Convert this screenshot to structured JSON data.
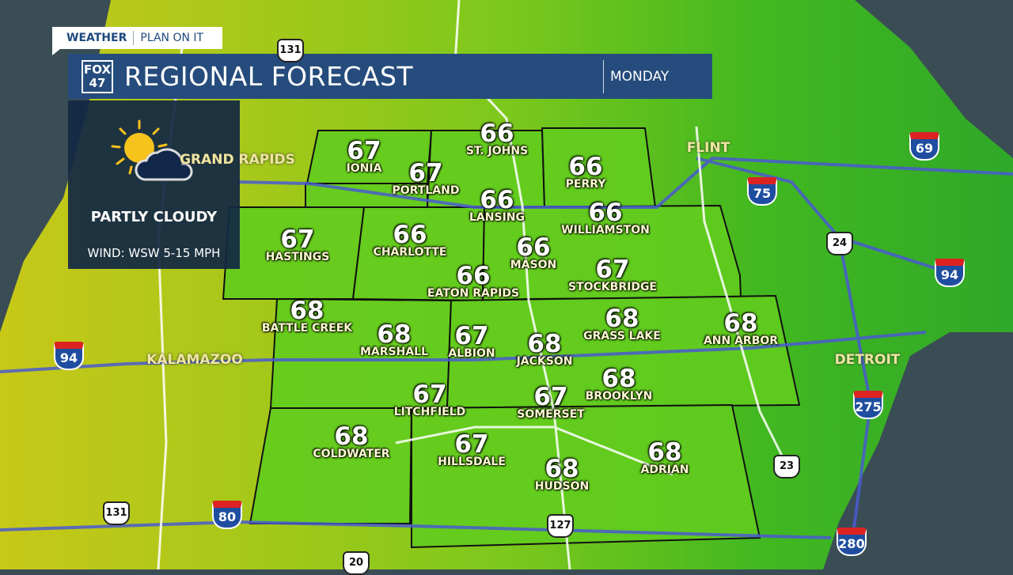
{
  "brand": {
    "weather": "WEATHER",
    "tagline": "PLAN ON IT"
  },
  "header": {
    "logo": "FOX 47",
    "title": "REGIONAL FORECAST",
    "day": "MONDAY"
  },
  "panel": {
    "icon": "partly-cloudy-icon",
    "condition": "PARTLY CLOUDY",
    "wind": "WIND: WSW 5-15 MPH"
  },
  "cities": [
    {
      "name": "IONIA",
      "temp": "67"
    },
    {
      "name": "ST. JOHNS",
      "temp": "66"
    },
    {
      "name": "PORTLAND",
      "temp": "67"
    },
    {
      "name": "PERRY",
      "temp": "66"
    },
    {
      "name": "LANSING",
      "temp": "66"
    },
    {
      "name": "WILLIAMSTON",
      "temp": "66"
    },
    {
      "name": "HASTINGS",
      "temp": "67"
    },
    {
      "name": "CHARLOTTE",
      "temp": "66"
    },
    {
      "name": "MASON",
      "temp": "66"
    },
    {
      "name": "STOCKBRIDGE",
      "temp": "67"
    },
    {
      "name": "EATON RAPIDS",
      "temp": "66"
    },
    {
      "name": "BATTLE CREEK",
      "temp": "68"
    },
    {
      "name": "MARSHALL",
      "temp": "68"
    },
    {
      "name": "ALBION",
      "temp": "67"
    },
    {
      "name": "JACKSON",
      "temp": "68"
    },
    {
      "name": "GRASS LAKE",
      "temp": "68"
    },
    {
      "name": "ANN ARBOR",
      "temp": "68"
    },
    {
      "name": "LITCHFIELD",
      "temp": "67"
    },
    {
      "name": "SOMERSET",
      "temp": "67"
    },
    {
      "name": "BROOKLYN",
      "temp": "68"
    },
    {
      "name": "COLDWATER",
      "temp": "68"
    },
    {
      "name": "HILLSDALE",
      "temp": "67"
    },
    {
      "name": "HUDSON",
      "temp": "68"
    },
    {
      "name": "ADRIAN",
      "temp": "68"
    }
  ],
  "background_cities": [
    "GRAND RAPIDS",
    "FLINT",
    "KALAMAZOO",
    "DETROIT"
  ],
  "shields": [
    {
      "type": "us",
      "num": "131"
    },
    {
      "type": "us",
      "num": "131"
    },
    {
      "type": "us",
      "num": "127"
    },
    {
      "type": "us",
      "num": "23"
    },
    {
      "type": "us",
      "num": "24"
    },
    {
      "type": "us",
      "num": "20"
    },
    {
      "type": "interstate",
      "num": "69"
    },
    {
      "type": "interstate",
      "num": "75"
    },
    {
      "type": "interstate",
      "num": "94"
    },
    {
      "type": "interstate",
      "num": "94"
    },
    {
      "type": "interstate",
      "num": "80"
    },
    {
      "type": "interstate",
      "num": "275"
    },
    {
      "type": "interstate",
      "num": "280"
    }
  ],
  "colors": {
    "header": "#254c7c",
    "panel": "#12284a",
    "water": "#3a4d55",
    "land_green": "#4cc41a",
    "land_yellow": "#b8c814"
  }
}
